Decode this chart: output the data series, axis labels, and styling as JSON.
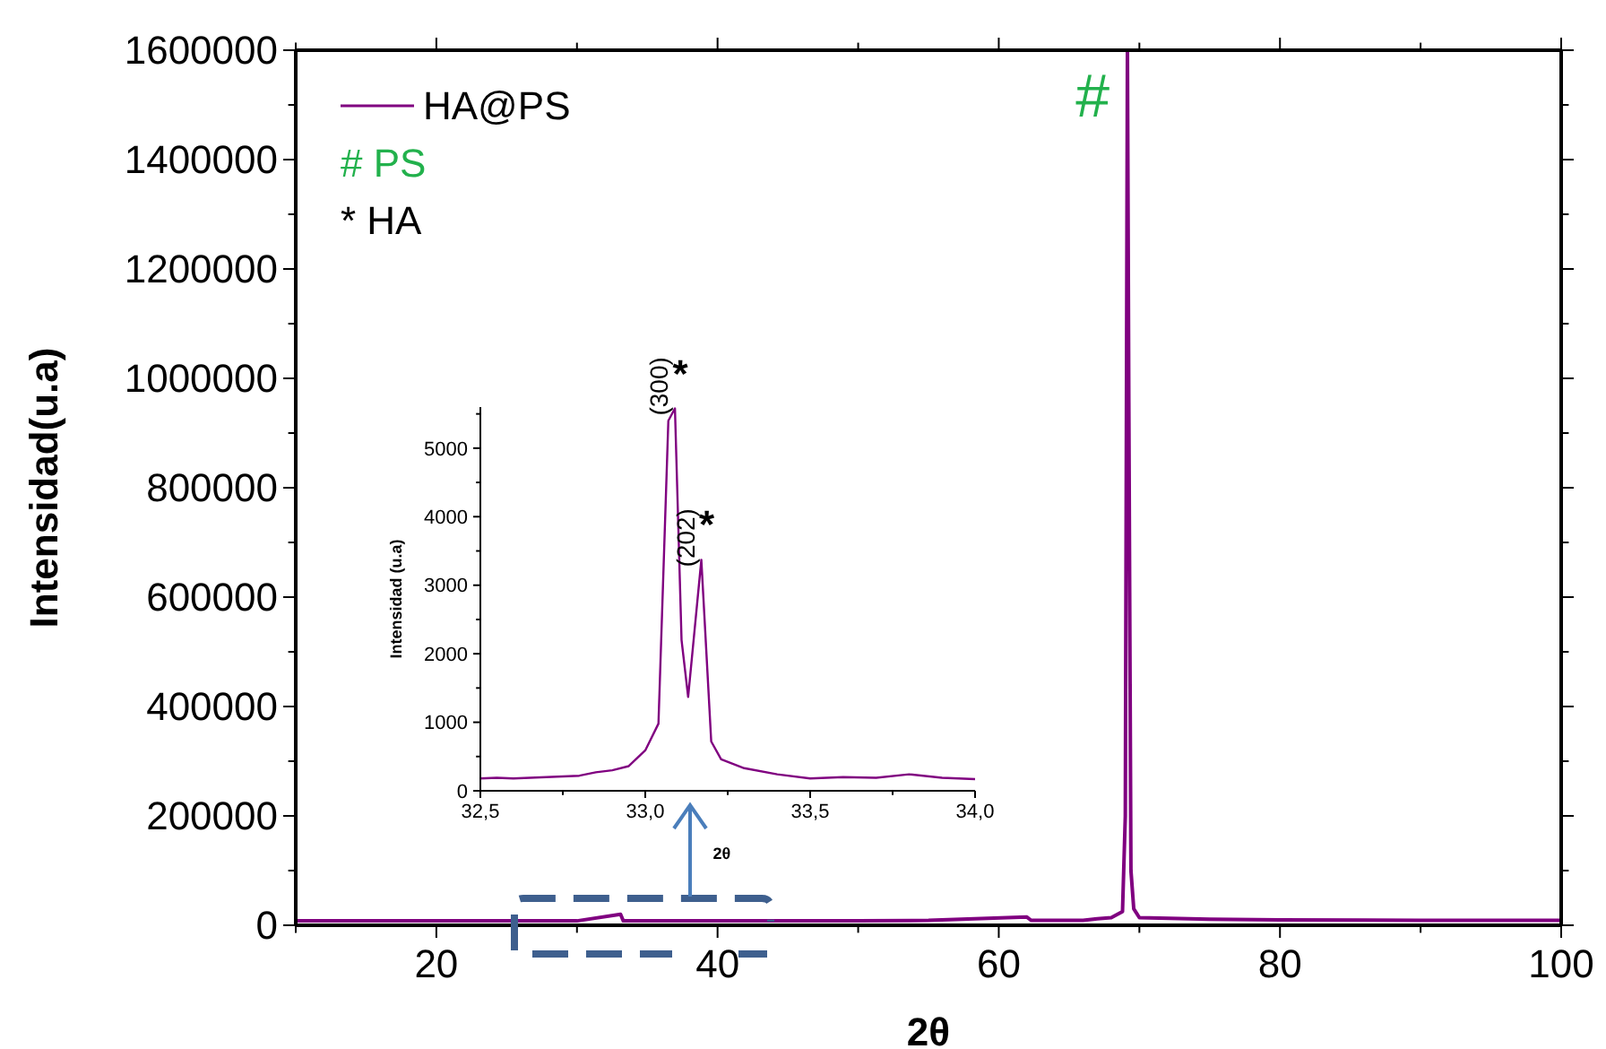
{
  "chart_data": [
    {
      "type": "line",
      "xlabel": "2θ",
      "ylabel": "Intensidad(u.a)",
      "xlim": [
        10,
        100
      ],
      "ylim": [
        0,
        1600000
      ],
      "xticks": [
        {
          "value": 10,
          "label": null
        },
        20,
        {
          "value": 30,
          "label": null
        },
        40,
        {
          "value": 50,
          "label": null
        },
        60,
        {
          "value": 70,
          "label": null
        },
        80,
        {
          "value": 90,
          "label": null
        },
        100
      ],
      "yticks": [
        0,
        {
          "value": 100000,
          "label": null
        },
        200000,
        {
          "value": 300000,
          "label": null
        },
        400000,
        {
          "value": 500000,
          "label": null
        },
        600000,
        {
          "value": 700000,
          "label": null
        },
        800000,
        {
          "value": 900000,
          "label": null
        },
        1000000,
        {
          "value": 1100000,
          "label": null
        },
        1200000,
        {
          "value": 1300000,
          "label": null
        },
        1400000,
        {
          "value": 1500000,
          "label": null
        },
        1600000
      ],
      "x": [
        10,
        20,
        30,
        33.1,
        33.3,
        40,
        50,
        55,
        62,
        62.3,
        66,
        67,
        68,
        68.8,
        69.0,
        69.15,
        69.25,
        69.4,
        69.6,
        70,
        75,
        80,
        90,
        100
      ],
      "series": [
        {
          "name": "HA@PS",
          "color": "#800080",
          "values": [
            8000,
            8000,
            8000,
            20000,
            8000,
            8000,
            8000,
            9000,
            15000,
            9000,
            9000,
            12000,
            14000,
            25000,
            200000,
            1600000,
            957000,
            100000,
            30000,
            14000,
            11000,
            10000,
            9000,
            9000
          ]
        }
      ],
      "legend": "top left",
      "grid": false,
      "annotations": [
        {
          "text": "#",
          "x": 69.15,
          "y": 1600000
        },
        "# PS",
        "* HA"
      ]
    },
    {
      "type": "line",
      "xlabel": "2θ",
      "ylabel": "Intensidad (u.a)",
      "xlim": [
        32.5,
        34
      ],
      "ylim": [
        0,
        5600
      ],
      "xticks": [
        {
          "value": 32.5,
          "label": "32,5"
        },
        {
          "value": 32.75,
          "label": null
        },
        {
          "value": 33,
          "label": "33,0"
        },
        {
          "value": 33.25,
          "label": null
        },
        {
          "value": 33.5,
          "label": "33,5"
        },
        {
          "value": 33.75,
          "label": null
        },
        {
          "value": 34,
          "label": "34,0"
        }
      ],
      "yticks": [
        0,
        {
          "value": 500,
          "label": null
        },
        1000,
        {
          "value": 1500,
          "label": null
        },
        2000,
        {
          "value": 2500,
          "label": null
        },
        3000,
        {
          "value": 3500,
          "label": null
        },
        4000,
        {
          "value": 4500,
          "label": null
        },
        5000,
        {
          "value": 5500,
          "label": null
        }
      ],
      "x": [
        32.5,
        32.55,
        32.6,
        32.7,
        32.8,
        32.85,
        32.9,
        32.95,
        33.0,
        33.04,
        33.07,
        33.09,
        33.11,
        33.13,
        33.17,
        33.2,
        33.23,
        33.3,
        33.4,
        33.5,
        33.6,
        33.7,
        33.8,
        33.9,
        34.0
      ],
      "series": [
        {
          "color": "#800080",
          "values": [
            180,
            190,
            180,
            200,
            220,
            270,
            300,
            360,
            590,
            980,
            5400,
            5580,
            2200,
            1370,
            3370,
            720,
            460,
            330,
            240,
            180,
            200,
            190,
            240,
            190,
            170
          ]
        }
      ],
      "grid": false,
      "annotations": [
        {
          "text": "(300)",
          "x": 33.09,
          "y": 5580
        },
        {
          "text": "*",
          "x": 33.09,
          "y": 5580
        },
        {
          "text": "(202)",
          "x": 33.17,
          "y": 3370
        },
        {
          "text": "*",
          "x": 33.17,
          "y": 3370
        }
      ]
    }
  ]
}
